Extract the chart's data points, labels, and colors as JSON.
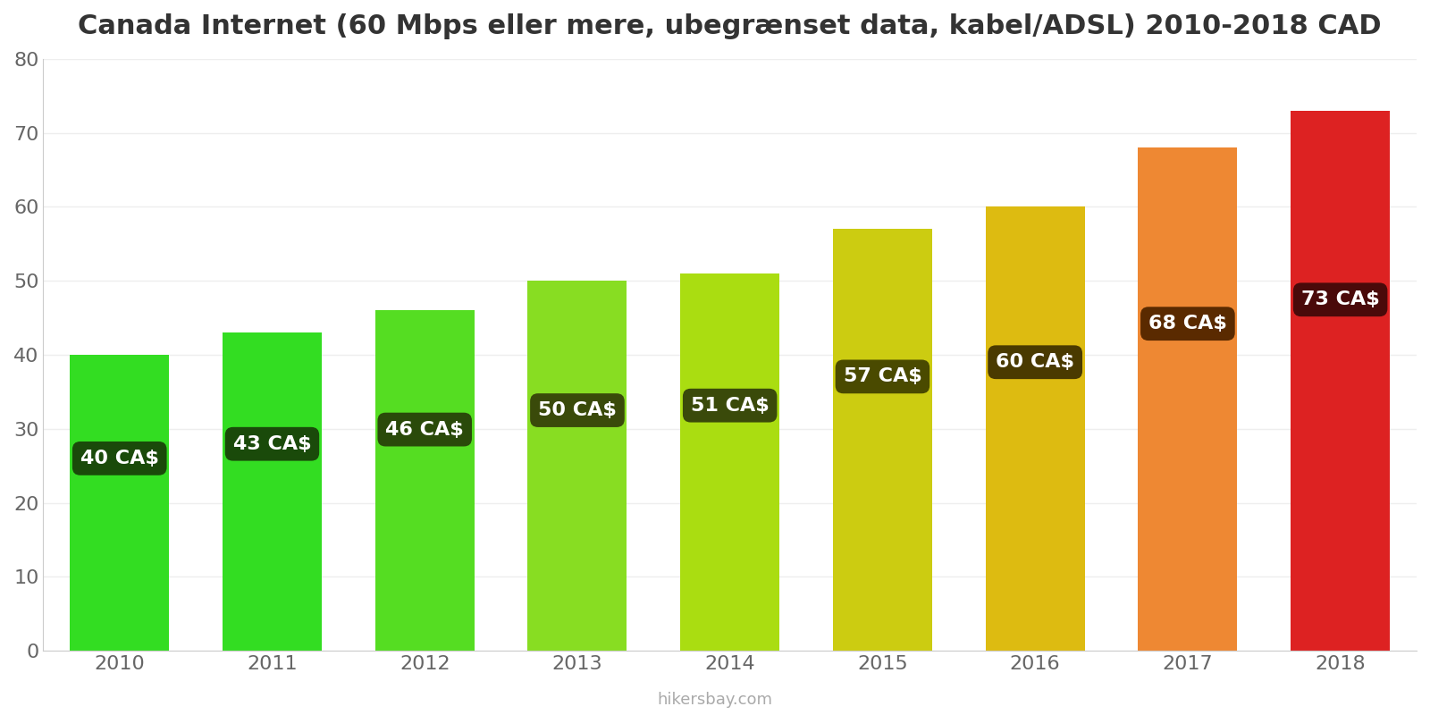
{
  "title": "Canada Internet (60 Mbps eller mere, ubegrænset data, kabel/ADSL) 2010-2018 CAD",
  "years": [
    2010,
    2011,
    2012,
    2013,
    2014,
    2015,
    2016,
    2017,
    2018
  ],
  "values": [
    40,
    43,
    46,
    50,
    51,
    57,
    60,
    68,
    73
  ],
  "labels": [
    "40 CA$",
    "43 CA$",
    "46 CA$",
    "50 CA$",
    "51 CA$",
    "57 CA$",
    "60 CA$",
    "68 CA$",
    "73 CA$"
  ],
  "bar_colors": [
    "#33dd22",
    "#33dd22",
    "#55dd22",
    "#88dd22",
    "#aadd11",
    "#cccc11",
    "#ddbb11",
    "#ee8833",
    "#dd2222"
  ],
  "label_bg_colors": [
    "#1a4a0a",
    "#1a4a0a",
    "#2a4a0a",
    "#3a4a0a",
    "#3a4a0a",
    "#4a4a00",
    "#4a3a00",
    "#5a2a00",
    "#4a0a0a"
  ],
  "ylim": [
    0,
    80
  ],
  "yticks": [
    0,
    10,
    20,
    30,
    40,
    50,
    60,
    70,
    80
  ],
  "title_fontsize": 22,
  "tick_fontsize": 16,
  "label_fontsize": 16,
  "watermark": "hikersbay.com",
  "background_color": "#ffffff",
  "grid_color": "#eeeeee"
}
